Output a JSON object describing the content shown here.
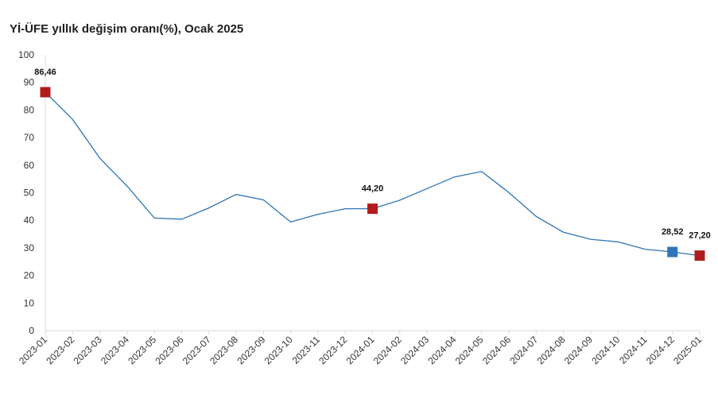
{
  "title": "Yİ-ÜFE yıllık değişim oranı(%), Ocak 2025",
  "chart_data": {
    "type": "line",
    "title": "Yİ-ÜFE yıllık değişim oranı(%), Ocak 2025",
    "xlabel": "",
    "ylabel": "",
    "ylim": [
      0,
      100
    ],
    "yticks": [
      0,
      10,
      20,
      30,
      40,
      50,
      60,
      70,
      80,
      90,
      100
    ],
    "grid": false,
    "legend": "none",
    "categories": [
      "2023-01",
      "2023-02",
      "2023-03",
      "2023-04",
      "2023-05",
      "2023-06",
      "2023-07",
      "2023-08",
      "2023-09",
      "2023-10",
      "2023-11",
      "2023-12",
      "2024-01",
      "2024-02",
      "2024-03",
      "2024-04",
      "2024-05",
      "2024-06",
      "2024-07",
      "2024-08",
      "2024-09",
      "2024-10",
      "2024-11",
      "2024-12",
      "2025-01"
    ],
    "series": [
      {
        "values": [
          86.46,
          76.6,
          62.5,
          52.4,
          40.8,
          40.4,
          44.5,
          49.4,
          47.4,
          39.4,
          42.2,
          44.2,
          44.2,
          47.3,
          51.5,
          55.7,
          57.7,
          50.1,
          41.4,
          35.7,
          33.1,
          32.2,
          29.5,
          28.52,
          27.2
        ],
        "color": "#2e75b6"
      }
    ],
    "markers": [
      {
        "index": 0,
        "label": "86,46",
        "color": "#b01c1c"
      },
      {
        "index": 12,
        "label": "44,20",
        "color": "#b01c1c"
      },
      {
        "index": 23,
        "label": "28,52",
        "color": "#2e75b6"
      },
      {
        "index": 24,
        "label": "27,20",
        "color": "#b01c1c"
      }
    ]
  }
}
